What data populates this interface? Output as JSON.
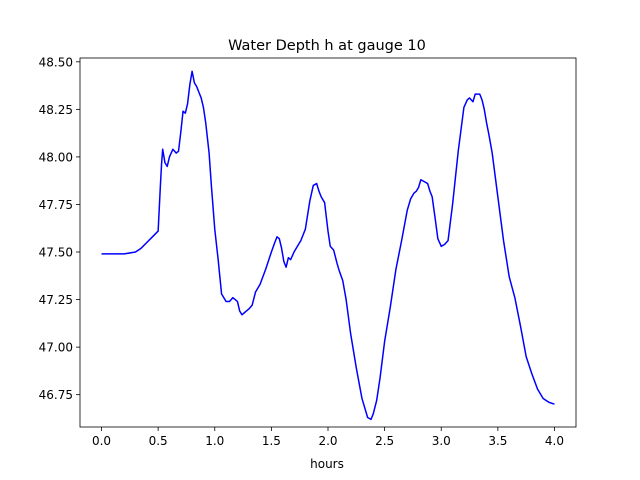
{
  "chart_data": {
    "type": "line",
    "title": "Water Depth h at gauge 10",
    "xlabel": "hours",
    "ylabel": "",
    "xlim": [
      -0.19,
      4.19
    ],
    "ylim": [
      46.58,
      48.52
    ],
    "xticks": [
      0.0,
      0.5,
      1.0,
      1.5,
      2.0,
      2.5,
      3.0,
      3.5,
      4.0
    ],
    "xtick_labels": [
      "0.0",
      "0.5",
      "1.0",
      "1.5",
      "2.0",
      "2.5",
      "3.0",
      "3.5",
      "4.0"
    ],
    "yticks": [
      46.75,
      47.0,
      47.25,
      47.5,
      47.75,
      48.0,
      48.25,
      48.5
    ],
    "ytick_labels": [
      "46.75",
      "47.00",
      "47.25",
      "47.50",
      "47.75",
      "48.00",
      "48.25",
      "48.50"
    ],
    "grid": false,
    "legend": false,
    "series": [
      {
        "color": "#0000ff",
        "x": [
          0.0,
          0.1,
          0.2,
          0.3,
          0.35,
          0.4,
          0.45,
          0.5,
          0.52,
          0.53,
          0.54,
          0.56,
          0.58,
          0.6,
          0.63,
          0.66,
          0.68,
          0.7,
          0.72,
          0.74,
          0.76,
          0.78,
          0.8,
          0.82,
          0.84,
          0.86,
          0.88,
          0.9,
          0.92,
          0.95,
          0.97,
          1.0,
          1.03,
          1.06,
          1.1,
          1.13,
          1.16,
          1.2,
          1.22,
          1.24,
          1.26,
          1.28,
          1.3,
          1.33,
          1.36,
          1.4,
          1.45,
          1.5,
          1.53,
          1.55,
          1.57,
          1.59,
          1.61,
          1.63,
          1.65,
          1.67,
          1.7,
          1.73,
          1.76,
          1.8,
          1.84,
          1.87,
          1.9,
          1.92,
          1.94,
          1.97,
          2.0,
          2.02,
          2.05,
          2.08,
          2.1,
          2.13,
          2.16,
          2.2,
          2.25,
          2.3,
          2.35,
          2.38,
          2.4,
          2.43,
          2.46,
          2.5,
          2.55,
          2.6,
          2.65,
          2.7,
          2.73,
          2.76,
          2.78,
          2.8,
          2.82,
          2.85,
          2.88,
          2.9,
          2.92,
          2.95,
          2.97,
          3.0,
          3.03,
          3.06,
          3.1,
          3.15,
          3.2,
          3.23,
          3.25,
          3.28,
          3.3,
          3.32,
          3.34,
          3.36,
          3.38,
          3.4,
          3.42,
          3.45,
          3.5,
          3.55,
          3.6,
          3.65,
          3.7,
          3.75,
          3.8,
          3.85,
          3.9,
          3.95,
          4.0
        ],
        "y": [
          47.49,
          47.49,
          47.49,
          47.5,
          47.52,
          47.55,
          47.58,
          47.61,
          47.85,
          47.96,
          48.04,
          47.97,
          47.95,
          48.0,
          48.04,
          48.02,
          48.03,
          48.13,
          48.24,
          48.23,
          48.28,
          48.38,
          48.45,
          48.39,
          48.37,
          48.34,
          48.31,
          48.26,
          48.18,
          48.02,
          47.85,
          47.62,
          47.46,
          47.28,
          47.24,
          47.24,
          47.26,
          47.24,
          47.19,
          47.17,
          47.18,
          47.19,
          47.2,
          47.22,
          47.29,
          47.33,
          47.41,
          47.5,
          47.55,
          47.58,
          47.57,
          47.52,
          47.45,
          47.42,
          47.47,
          47.46,
          47.5,
          47.53,
          47.56,
          47.62,
          47.77,
          47.85,
          47.86,
          47.82,
          47.79,
          47.76,
          47.61,
          47.53,
          47.51,
          47.44,
          47.4,
          47.35,
          47.25,
          47.07,
          46.89,
          46.73,
          46.63,
          46.62,
          46.65,
          46.72,
          46.84,
          47.03,
          47.21,
          47.41,
          47.56,
          47.72,
          47.78,
          47.81,
          47.82,
          47.84,
          47.88,
          47.87,
          47.86,
          47.82,
          47.79,
          47.66,
          47.57,
          47.53,
          47.54,
          47.56,
          47.75,
          48.03,
          48.26,
          48.3,
          48.31,
          48.29,
          48.33,
          48.33,
          48.33,
          48.3,
          48.25,
          48.18,
          48.12,
          48.02,
          47.79,
          47.56,
          47.37,
          47.26,
          47.11,
          46.95,
          46.86,
          46.78,
          46.73,
          46.71,
          46.7
        ]
      }
    ]
  }
}
